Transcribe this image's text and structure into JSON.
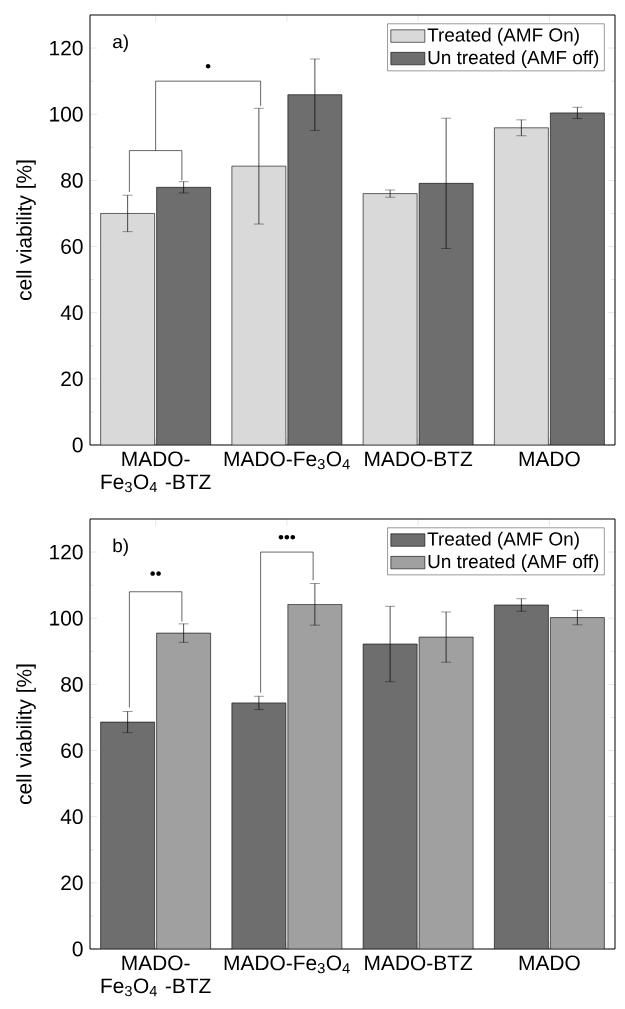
{
  "chart_data": [
    {
      "type": "bar",
      "title": "a)",
      "ylabel": "cell viability [%]",
      "categories": [
        "MADO-Fe$_{3}$O$_{4}$ -BTZ",
        "MADO-Fe$_{3}$O$_{4}$",
        "MADO-BTZ",
        "MADO"
      ],
      "series": [
        {
          "name": "Treated (AMF On)",
          "color": "#d9d9d9",
          "values": [
            70.0,
            84.3,
            76.0,
            95.9
          ],
          "errors": [
            5.5,
            17.5,
            1.1,
            2.4
          ]
        },
        {
          "name": "Un treated (AMF off)",
          "color": "#6e6e6e",
          "values": [
            77.9,
            105.9,
            79.1,
            100.4
          ],
          "errors": [
            1.7,
            10.8,
            19.7,
            1.7
          ]
        }
      ],
      "ylim": [
        0,
        130
      ],
      "yticks": [
        0,
        20,
        40,
        60,
        80,
        100,
        120
      ],
      "legend": "top right",
      "annotations": [
        "•"
      ]
    },
    {
      "type": "bar",
      "title": "b)",
      "ylabel": "cell viability [%]",
      "categories": [
        "MADO-Fe$_{3}$O$_{4}$ -BTZ",
        "MADO-Fe$_{3}$O$_{4}$",
        "MADO-BTZ",
        "MADO"
      ],
      "series": [
        {
          "name": "Treated (AMF On)",
          "color": "#6e6e6e",
          "values": [
            68.6,
            74.4,
            92.2,
            104.0
          ],
          "errors": [
            3.2,
            2.0,
            11.4,
            1.9
          ]
        },
        {
          "name": "Un treated (AMF off)",
          "color": "#a0a0a0",
          "values": [
            95.5,
            104.2,
            94.3,
            100.2
          ],
          "errors": [
            2.8,
            6.3,
            7.6,
            2.2
          ]
        }
      ],
      "ylim": [
        0,
        130
      ],
      "yticks": [
        0,
        20,
        40,
        60,
        80,
        100,
        120
      ],
      "legend": "top right",
      "annotations": [
        "••",
        "•••"
      ]
    }
  ]
}
